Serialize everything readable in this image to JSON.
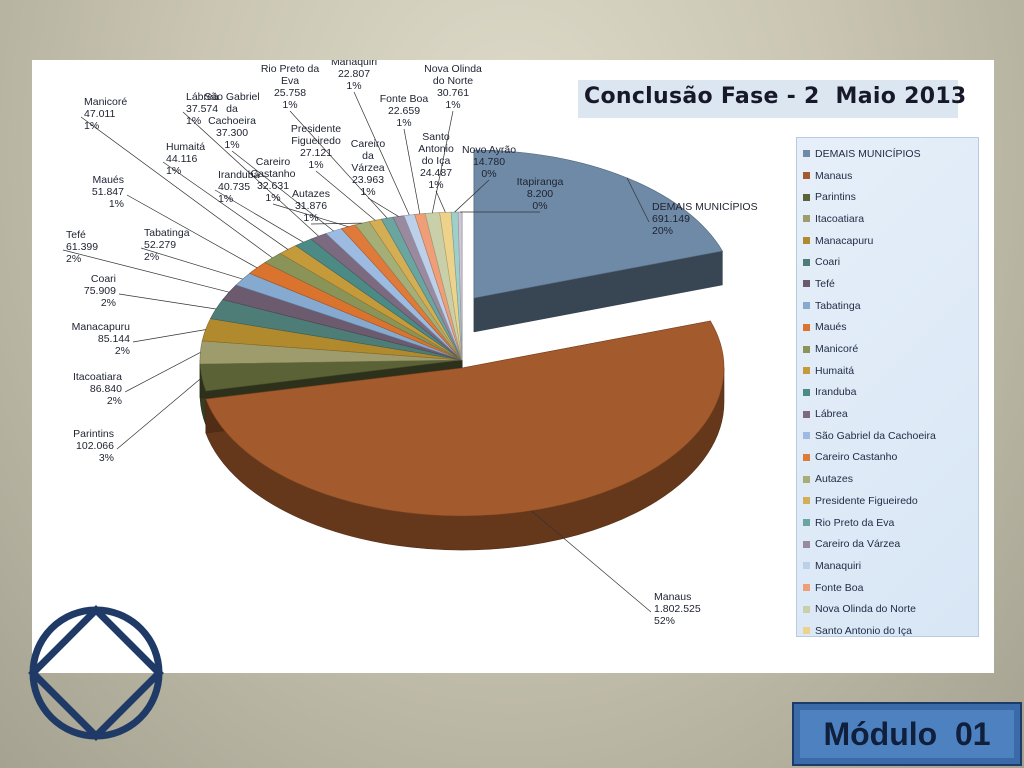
{
  "module_label": "Módulo  01",
  "colors": {
    "panel_bg": "#ffffff",
    "module_box": "#4e81c0",
    "logo": "#1f3a66"
  },
  "logo_icon": "na-circle-diamond-icon",
  "chart_data": {
    "type": "pie",
    "title": "Conclusão Fase - 2  Maio 2013",
    "legend_position": "right",
    "slices": [
      {
        "name": "DEMAIS MUNICÍPIOS",
        "value": 691149,
        "value_label": "691.149",
        "percent": "20%",
        "color": "#6f8aa6",
        "label_lines": [
          "DEMAIS MUNICÍPIOS"
        ]
      },
      {
        "name": "Manaus",
        "value": 1802525,
        "value_label": "1.802.525",
        "percent": "52%",
        "color": "#a35a2c",
        "label_lines": [
          "Manaus"
        ]
      },
      {
        "name": "Parintins",
        "value": 102066,
        "value_label": "102.066",
        "percent": "3%",
        "color": "#5a6236",
        "label_lines": [
          "Parintins"
        ]
      },
      {
        "name": "Itacoatiara",
        "value": 86840,
        "value_label": "86.840",
        "percent": "2%",
        "color": "#9e9b6c",
        "label_lines": [
          "Itacoatiara"
        ]
      },
      {
        "name": "Manacapuru",
        "value": 85144,
        "value_label": "85.144",
        "percent": "2%",
        "color": "#b28a2e",
        "label_lines": [
          "Manacapuru"
        ]
      },
      {
        "name": "Coari",
        "value": 75909,
        "value_label": "75.909",
        "percent": "2%",
        "color": "#4e7d78",
        "label_lines": [
          "Coari"
        ]
      },
      {
        "name": "Tefé",
        "value": 61399,
        "value_label": "61.399",
        "percent": "2%",
        "color": "#6c5a6e",
        "label_lines": [
          "Tefé"
        ]
      },
      {
        "name": "Tabatinga",
        "value": 52279,
        "value_label": "52.279",
        "percent": "2%",
        "color": "#85a9cf",
        "label_lines": [
          "Tabatinga"
        ]
      },
      {
        "name": "Maués",
        "value": 51847,
        "value_label": "51.847",
        "percent": "1%",
        "color": "#d9732e",
        "label_lines": [
          "Maués"
        ]
      },
      {
        "name": "Manicoré",
        "value": 47011,
        "value_label": "47.011",
        "percent": "1%",
        "color": "#8b9458",
        "label_lines": [
          "Manicoré"
        ]
      },
      {
        "name": "Humaitá",
        "value": 44116,
        "value_label": "44.116",
        "percent": "1%",
        "color": "#c49a3a",
        "label_lines": [
          "Humaitá"
        ]
      },
      {
        "name": "Iranduba",
        "value": 40735,
        "value_label": "40.735",
        "percent": "1%",
        "color": "#4c8a86",
        "label_lines": [
          "Iranduba"
        ]
      },
      {
        "name": "Lábrea",
        "value": 37574,
        "value_label": "37.574",
        "percent": "1%",
        "color": "#7b6a80",
        "label_lines": [
          "Lábrea"
        ]
      },
      {
        "name": "São Gabriel da Cachoeira",
        "value": 37300,
        "value_label": "37.300",
        "percent": "1%",
        "color": "#9dbbe0",
        "label_lines": [
          "São Gabriel",
          "da",
          "Cachoeira"
        ]
      },
      {
        "name": "Careiro Castanho",
        "value": 32631,
        "value_label": "32.631",
        "percent": "1%",
        "color": "#e07a3a",
        "label_lines": [
          "Careiro",
          "Castanho"
        ]
      },
      {
        "name": "Autazes",
        "value": 31876,
        "value_label": "31.876",
        "percent": "1%",
        "color": "#a6ae78",
        "label_lines": [
          "Autazes"
        ]
      },
      {
        "name": "Presidente Figueiredo",
        "value": 27121,
        "value_label": "27.121",
        "percent": "1%",
        "color": "#d4ae55",
        "label_lines": [
          "Presidente",
          "Figueiredo"
        ]
      },
      {
        "name": "Rio Preto da Eva",
        "value": 25758,
        "value_label": "25.758",
        "percent": "1%",
        "color": "#6aa5a0",
        "label_lines": [
          "Rio Preto da",
          "Eva"
        ]
      },
      {
        "name": "Careiro da Várzea",
        "value": 23963,
        "value_label": "23.963",
        "percent": "1%",
        "color": "#9a8aa0",
        "label_lines": [
          "Careiro",
          "da",
          "Várzea"
        ]
      },
      {
        "name": "Manaquiri",
        "value": 22807,
        "value_label": "22.807",
        "percent": "1%",
        "color": "#bdd0ea",
        "label_lines": [
          "Manaquiri"
        ]
      },
      {
        "name": "Fonte Boa",
        "value": 22659,
        "value_label": "22.659",
        "percent": "1%",
        "color": "#ef9e78",
        "label_lines": [
          "Fonte Boa"
        ]
      },
      {
        "name": "Nova Olinda do Norte",
        "value": 30761,
        "value_label": "30.761",
        "percent": "1%",
        "color": "#c9cfa8",
        "label_lines": [
          "Nova Olinda",
          "do Norte"
        ]
      },
      {
        "name": "Santo Antonio do Iça",
        "value": 24487,
        "value_label": "24.487",
        "percent": "1%",
        "color": "#ecd28a",
        "label_lines": [
          "Santo",
          "Antonio",
          "do Içа"
        ]
      },
      {
        "name": "Novo Ayrão",
        "value": 14780,
        "value_label": "14.780",
        "percent": "0%",
        "color": "#9fcfc9",
        "label_lines": [
          "Novo Ayrão"
        ]
      },
      {
        "name": "Itapiranga",
        "value": 8200,
        "value_label": "8.200",
        "percent": "0%",
        "color": "#cfc7d6",
        "label_lines": [
          "Itapiranga"
        ]
      }
    ],
    "legend": [
      "DEMAIS MUNICÍPIOS",
      "Manaus",
      "Parintins",
      "Itacoatiara",
      "Manacapuru",
      "Coari",
      "Tefé",
      "Tabatinga",
      "Maués",
      "Manicoré",
      "Humaitá",
      "Iranduba",
      "Lábrea",
      "São Gabriel da Cachoeira",
      "Careiro Castanho",
      "Autazes",
      "Presidente Figueiredo",
      "Rio Preto da Eva",
      "Careiro da Várzea",
      "Manaquiri",
      "Fonte Boa",
      "Nova Olinda do Norte",
      "Santo Antonio do Iça"
    ]
  }
}
